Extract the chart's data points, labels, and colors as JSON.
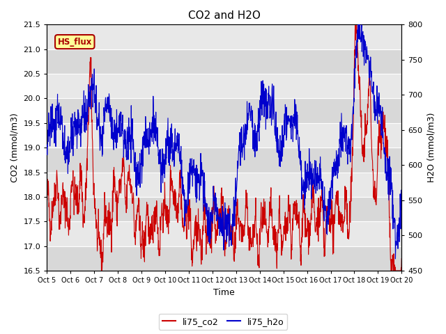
{
  "title": "CO2 and H2O",
  "xlabel": "Time",
  "ylabel_left": "CO2 (mmol/m3)",
  "ylabel_right": "H2O (mmol/m3)",
  "ylim_left": [
    16.5,
    21.5
  ],
  "ylim_right": [
    450,
    800
  ],
  "yticks_left": [
    16.5,
    17.0,
    17.5,
    18.0,
    18.5,
    19.0,
    19.5,
    20.0,
    20.5,
    21.0,
    21.5
  ],
  "yticks_right": [
    450,
    500,
    550,
    600,
    650,
    700,
    750,
    800
  ],
  "xtick_labels": [
    "Oct 5",
    "Oct 6",
    "Oct 7",
    "Oct 8",
    "Oct 9",
    "Oct 10",
    "Oct 11",
    "Oct 12",
    "Oct 13",
    "Oct 14",
    "Oct 15",
    "Oct 16",
    "Oct 17",
    "Oct 18",
    "Oct 19",
    "Oct 20"
  ],
  "color_co2": "#cc0000",
  "color_h2o": "#0000cc",
  "legend_label_co2": "li75_co2",
  "legend_label_h2o": "li75_h2o",
  "annotation_text": "HS_flux",
  "annotation_bg": "#ffff99",
  "annotation_border": "#aa0000",
  "plot_bg_color": "#ffffff",
  "axes_bg_color": "#e8e8e8",
  "band_color_light": "#d8d8d8",
  "grid_color": "#ffffff",
  "seed": 42
}
